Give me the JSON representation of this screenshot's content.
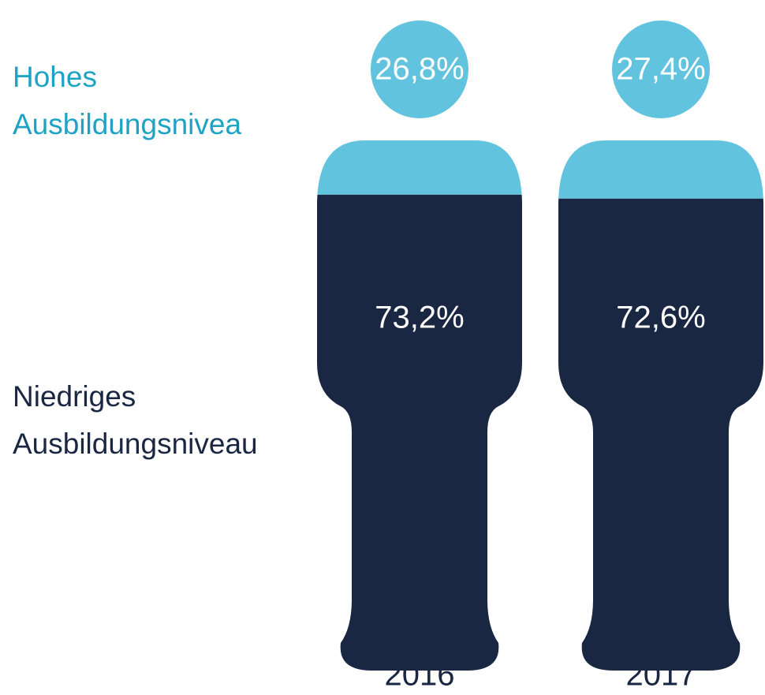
{
  "chart_data": {
    "type": "pictogram",
    "categories": [
      "2016",
      "2017"
    ],
    "series": [
      {
        "name": "Hohes Ausbildungsnivea",
        "color": "#62c3df",
        "text_color": "#1fa3c5",
        "values": [
          26.8,
          27.4
        ],
        "value_labels": [
          "26,8%",
          "27,4%"
        ]
      },
      {
        "name": "Niedriges Ausbildungsniveau",
        "color": "#1a2742",
        "text_color": "#1a2742",
        "values": [
          73.2,
          72.6
        ],
        "value_labels": [
          "73,2%",
          "72,6%"
        ]
      }
    ]
  }
}
